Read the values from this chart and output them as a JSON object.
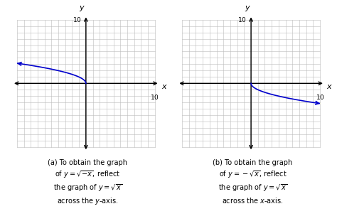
{
  "xlim": [
    -10.8,
    11.5
  ],
  "ylim": [
    -10.8,
    11.5
  ],
  "grid_color": "#bbbbbb",
  "axis_color": "#000000",
  "curve_color": "#0000cc",
  "background": "#ffffff",
  "caption_a": "(a) To obtain the graph\nof $y = \\sqrt{-x}$, reflect\nthe graph of $y = \\sqrt{x}$\nacross the $y$-axis.",
  "caption_b": "(b) To obtain the graph\nof $y = -\\sqrt{x}$, reflect\nthe graph of $y = \\sqrt{x}$\nacross the $x$-axis."
}
